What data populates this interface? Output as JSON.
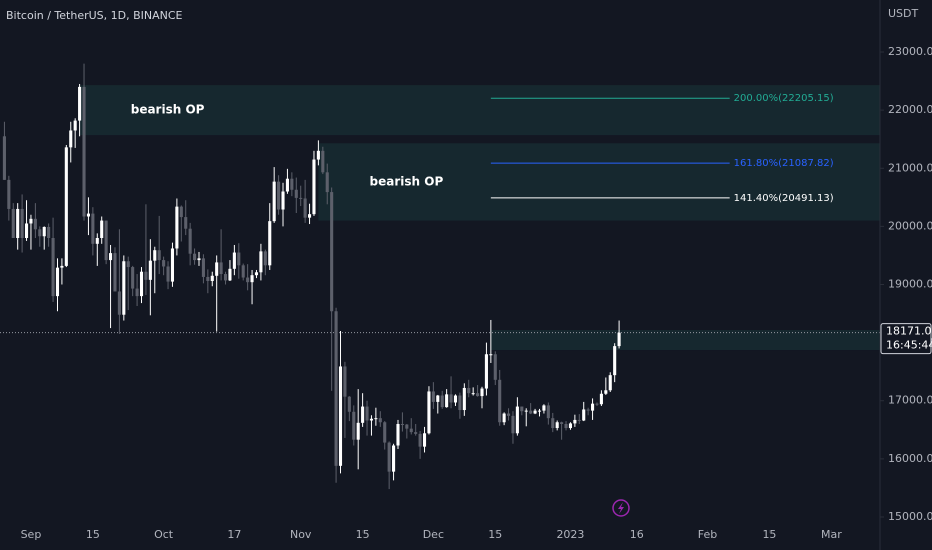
{
  "chart_data": {
    "type": "candlestick",
    "title": "Bitcoin / TetherUS, 1D, BINANCE",
    "y_unit": "USDT",
    "up_color": "#ffffff",
    "down_color": "#5d606b",
    "grid": false,
    "xlim": [
      "2022-08-25",
      "2023-03-12"
    ],
    "ylim": [
      14776,
      23895
    ],
    "yticks": [
      {
        "value": 15000,
        "label": "15000.00"
      },
      {
        "value": 16000,
        "label": "16000.00"
      },
      {
        "value": 17000,
        "label": "17000.00"
      },
      {
        "value": 18000,
        "label": "18000.00"
      },
      {
        "value": 19000,
        "label": "19000.00"
      },
      {
        "value": 20000,
        "label": "20000.00"
      },
      {
        "value": 21000,
        "label": "21000.00"
      },
      {
        "value": 22000,
        "label": "22000.00"
      },
      {
        "value": 23000,
        "label": "23000.00"
      }
    ],
    "xticks": [
      {
        "value": "2022-09-01",
        "label": "Sep"
      },
      {
        "value": "2022-09-15",
        "label": "15"
      },
      {
        "value": "2022-10-01",
        "label": "Oct"
      },
      {
        "value": "2022-10-17",
        "label": "17"
      },
      {
        "value": "2022-11-01",
        "label": "Nov"
      },
      {
        "value": "2022-11-15",
        "label": "15"
      },
      {
        "value": "2022-12-01",
        "label": "Dec"
      },
      {
        "value": "2022-12-15",
        "label": "15"
      },
      {
        "value": "2023-01-01",
        "label": "2023"
      },
      {
        "value": "2023-01-16",
        "label": "16"
      },
      {
        "value": "2023-02-01",
        "label": "Feb"
      },
      {
        "value": "2023-02-15",
        "label": "15"
      },
      {
        "value": "2023-03-01",
        "label": "Mar"
      }
    ],
    "x": [
      "2022-08-26",
      "2022-08-27",
      "2022-08-28",
      "2022-08-29",
      "2022-08-30",
      "2022-08-31",
      "2022-09-01",
      "2022-09-02",
      "2022-09-03",
      "2022-09-04",
      "2022-09-05",
      "2022-09-06",
      "2022-09-07",
      "2022-09-08",
      "2022-09-09",
      "2022-09-10",
      "2022-09-11",
      "2022-09-12",
      "2022-09-13",
      "2022-09-14",
      "2022-09-15",
      "2022-09-16",
      "2022-09-17",
      "2022-09-18",
      "2022-09-19",
      "2022-09-20",
      "2022-09-21",
      "2022-09-22",
      "2022-09-23",
      "2022-09-24",
      "2022-09-25",
      "2022-09-26",
      "2022-09-27",
      "2022-09-28",
      "2022-09-29",
      "2022-09-30",
      "2022-10-01",
      "2022-10-02",
      "2022-10-03",
      "2022-10-04",
      "2022-10-05",
      "2022-10-06",
      "2022-10-07",
      "2022-10-08",
      "2022-10-09",
      "2022-10-10",
      "2022-10-11",
      "2022-10-12",
      "2022-10-13",
      "2022-10-14",
      "2022-10-15",
      "2022-10-16",
      "2022-10-17",
      "2022-10-18",
      "2022-10-19",
      "2022-10-20",
      "2022-10-21",
      "2022-10-22",
      "2022-10-23",
      "2022-10-24",
      "2022-10-25",
      "2022-10-26",
      "2022-10-27",
      "2022-10-28",
      "2022-10-29",
      "2022-10-30",
      "2022-10-31",
      "2022-11-01",
      "2022-11-02",
      "2022-11-03",
      "2022-11-04",
      "2022-11-05",
      "2022-11-06",
      "2022-11-07",
      "2022-11-08",
      "2022-11-09",
      "2022-11-10",
      "2022-11-11",
      "2022-11-12",
      "2022-11-13",
      "2022-11-14",
      "2022-11-15",
      "2022-11-16",
      "2022-11-17",
      "2022-11-18",
      "2022-11-19",
      "2022-11-20",
      "2022-11-21",
      "2022-11-22",
      "2022-11-23",
      "2022-11-24",
      "2022-11-25",
      "2022-11-26",
      "2022-11-27",
      "2022-11-28",
      "2022-11-29",
      "2022-11-30",
      "2022-12-01",
      "2022-12-02",
      "2022-12-03",
      "2022-12-04",
      "2022-12-05",
      "2022-12-06",
      "2022-12-07",
      "2022-12-08",
      "2022-12-09",
      "2022-12-10",
      "2022-12-11",
      "2022-12-12",
      "2022-12-13",
      "2022-12-14",
      "2022-12-15",
      "2022-12-16",
      "2022-12-17",
      "2022-12-18",
      "2022-12-19",
      "2022-12-20",
      "2022-12-21",
      "2022-12-22",
      "2022-12-23",
      "2022-12-24",
      "2022-12-25",
      "2022-12-26",
      "2022-12-27",
      "2022-12-28",
      "2022-12-29",
      "2022-12-30",
      "2022-12-31",
      "2023-01-01",
      "2023-01-02",
      "2023-01-03",
      "2023-01-04",
      "2023-01-05",
      "2023-01-06",
      "2023-01-07",
      "2023-01-08",
      "2023-01-09",
      "2023-01-10",
      "2023-01-11",
      "2023-01-12"
    ],
    "open": [
      21550,
      20800,
      20300,
      19800,
      20300,
      19800,
      20050,
      20130,
      19950,
      19830,
      19990,
      19800,
      18800,
      19290,
      19320,
      21360,
      21650,
      21820,
      22400,
      20170,
      20220,
      19700,
      19800,
      20100,
      19420,
      19540,
      18880,
      18480,
      19400,
      19300,
      18930,
      18800,
      19220,
      19080,
      19410,
      19590,
      19420,
      19310,
      19050,
      19620,
      20340,
      20160,
      19960,
      19530,
      19420,
      19450,
      19130,
      19060,
      19150,
      19380,
      19180,
      19070,
      19270,
      19550,
      19330,
      19120,
      19040,
      19160,
      19210,
      19570,
      19330,
      20090,
      20770,
      20290,
      20600,
      20820,
      20630,
      20490,
      20480,
      20150,
      20210,
      21150,
      21300,
      20930,
      20590,
      18540,
      15880,
      17590,
      17070,
      16810,
      16330,
      16620,
      16900,
      16660,
      16690,
      16700,
      16630,
      16280,
      15780,
      16230,
      16600,
      16590,
      16520,
      16460,
      16430,
      16210,
      16440,
      17160,
      16980,
      17090,
      16890,
      17110,
      16970,
      17090,
      16840,
      17220,
      17130,
      17130,
      17080,
      17210,
      17800,
      17800,
      17360,
      16630,
      16780,
      16740,
      16440,
      16900,
      16820,
      16830,
      16780,
      16830,
      16830,
      16920,
      16700,
      16530,
      16630,
      16600,
      16530,
      16610,
      16670,
      16660,
      16850,
      16830,
      16950,
      16940,
      17120,
      17180,
      17440,
      17940
    ],
    "high": [
      21800,
      20870,
      20400,
      20400,
      20550,
      20450,
      20200,
      20400,
      20000,
      20000,
      20050,
      20150,
      19450,
      19450,
      21400,
      21800,
      21860,
      22450,
      22800,
      20500,
      20330,
      19880,
      20170,
      20100,
      19680,
      19640,
      19950,
      19500,
      19480,
      19320,
      19180,
      19300,
      20380,
      19780,
      19650,
      20180,
      19480,
      19400,
      19720,
      20480,
      20360,
      20450,
      20060,
      19620,
      19560,
      19520,
      19260,
      19220,
      19500,
      19950,
      19220,
      19420,
      19680,
      19710,
      19360,
      19350,
      19250,
      19250,
      19700,
      19600,
      20400,
      21020,
      20880,
      20750,
      20990,
      20930,
      20840,
      20700,
      20800,
      20390,
      21300,
      21480,
      21370,
      21080,
      20670,
      18600,
      18200,
      17670,
      17080,
      16920,
      17200,
      17130,
      17000,
      16750,
      16880,
      16820,
      16650,
      16300,
      16260,
      16670,
      16800,
      16600,
      16700,
      16600,
      16480,
      16550,
      17250,
      17320,
      17100,
      17170,
      17200,
      17420,
      17110,
      17140,
      17300,
      17360,
      17230,
      17270,
      17240,
      18000,
      18390,
      17850,
      17530,
      16800,
      16870,
      16820,
      17060,
      16900,
      16870,
      16960,
      16860,
      16860,
      16940,
      16970,
      16790,
      16660,
      16640,
      16650,
      16630,
      16760,
      16770,
      16980,
      16880,
      17040,
      16970,
      17180,
      17400,
      17490,
      17990,
      18380
    ],
    "low": [
      20800,
      20100,
      19800,
      19600,
      19550,
      19750,
      19600,
      19800,
      19650,
      19600,
      19650,
      18700,
      18540,
      19000,
      19300,
      21100,
      21350,
      21550,
      20100,
      19850,
      19500,
      19320,
      19700,
      19350,
      18250,
      18920,
      18150,
      18380,
      18560,
      18800,
      18630,
      18680,
      18820,
      18470,
      18850,
      19180,
      19160,
      18920,
      18960,
      19500,
      19740,
      19850,
      19330,
      19340,
      19320,
      19020,
      18850,
      18970,
      18190,
      19070,
      19000,
      19060,
      19160,
      19100,
      19070,
      18900,
      18660,
      19110,
      19070,
      19160,
      19250,
      20060,
      20200,
      20000,
      20560,
      20520,
      20230,
      20350,
      20060,
      20040,
      20180,
      21050,
      20900,
      20380,
      17170,
      15590,
      15750,
      16360,
      16650,
      16230,
      15820,
      16550,
      16400,
      16400,
      16570,
      16550,
      16160,
      15480,
      15630,
      16170,
      16470,
      16350,
      16420,
      16400,
      16000,
      16110,
      16420,
      16860,
      16780,
      16860,
      16880,
      16870,
      16910,
      16690,
      16740,
      17060,
      17090,
      17070,
      16870,
      17090,
      17650,
      17270,
      16570,
      16580,
      16660,
      16260,
      16400,
      16750,
      16560,
      16770,
      16770,
      16730,
      16780,
      16590,
      16460,
      16490,
      16330,
      16490,
      16500,
      16550,
      16600,
      16650,
      16750,
      16670,
      16910,
      16910,
      17100,
      17150,
      17320,
      17900
    ],
    "close": [
      20800,
      20300,
      19800,
      20300,
      19800,
      20050,
      20130,
      19950,
      19830,
      19990,
      19800,
      18800,
      19290,
      19320,
      21360,
      21650,
      21820,
      22400,
      20170,
      20220,
      19700,
      19800,
      20100,
      19420,
      19540,
      18880,
      18480,
      19400,
      19300,
      18930,
      18800,
      19220,
      19080,
      19410,
      19590,
      19420,
      19310,
      19050,
      19620,
      20340,
      20160,
      19960,
      19530,
      19420,
      19450,
      19130,
      19060,
      19150,
      19380,
      19180,
      19070,
      19270,
      19550,
      19330,
      19120,
      19040,
      19160,
      19210,
      19570,
      19330,
      20090,
      20770,
      20290,
      20600,
      20820,
      20630,
      20490,
      20480,
      20150,
      20210,
      21150,
      21300,
      20930,
      20590,
      18540,
      15880,
      17590,
      17070,
      16810,
      16330,
      16620,
      16900,
      16660,
      16690,
      16700,
      16630,
      16280,
      15780,
      16230,
      16600,
      16590,
      16520,
      16460,
      16430,
      16210,
      16440,
      17160,
      16980,
      17090,
      16890,
      17110,
      16970,
      17090,
      16840,
      17220,
      17130,
      17130,
      17080,
      17210,
      17800,
      17800,
      17360,
      16630,
      16780,
      16740,
      16440,
      16900,
      16820,
      16830,
      16780,
      16830,
      16830,
      16920,
      16700,
      16530,
      16630,
      16600,
      16530,
      16610,
      16670,
      16660,
      16850,
      16830,
      16950,
      16940,
      17120,
      17180,
      17440,
      17940,
      18171
    ],
    "zones": [
      {
        "label": "bearish OP",
        "x": "2022-09-12",
        "high": 22430,
        "low": 21570
      },
      {
        "label": "bearish OP",
        "x": "2022-11-05",
        "high": 21430,
        "low": 20100
      },
      {
        "x": "2022-12-14",
        "high": 18217,
        "low": 17873
      }
    ],
    "fib": {
      "x": [
        "2022-12-14",
        "2023-02-06"
      ],
      "levels": [
        {
          "label": "200.00%(22205.15)",
          "value": 22205.15,
          "color": "#22ab94"
        },
        {
          "label": "161.80%(21087.82)",
          "value": 21087.82,
          "color": "#2962ff"
        },
        {
          "label": "141.40%(20491.13)",
          "value": 20491.13,
          "color": "#ffffff"
        }
      ]
    },
    "last": {
      "value": 18171,
      "label": "18171.00",
      "countdown": "16:45:44"
    }
  }
}
